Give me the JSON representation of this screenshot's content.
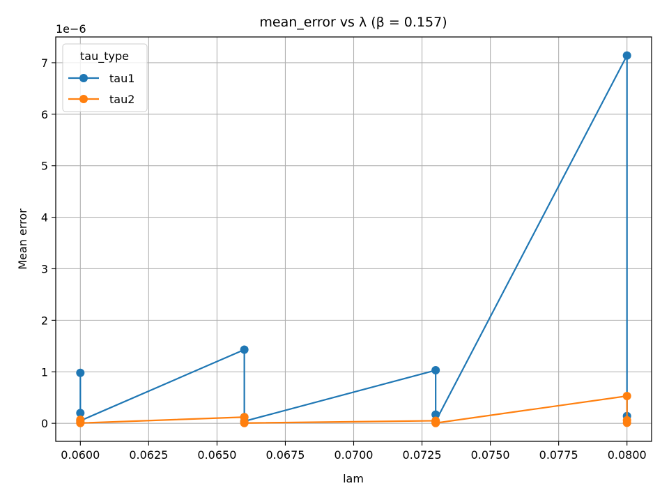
{
  "chart_data": {
    "type": "line",
    "title": "mean_error vs λ (β = 0.157)",
    "xlabel": "lam",
    "ylabel": "Mean error",
    "y_offset_label": "1e−6",
    "xlim": [
      0.0591,
      0.0809
    ],
    "ylim": [
      -0.35,
      7.5
    ],
    "y_scale_factor": 1e-06,
    "x_ticks": [
      0.06,
      0.0625,
      0.065,
      0.0675,
      0.07,
      0.0725,
      0.075,
      0.0775,
      0.08
    ],
    "x_tick_labels": [
      "0.0600",
      "0.0625",
      "0.0650",
      "0.0675",
      "0.0700",
      "0.0725",
      "0.0750",
      "0.0775",
      "0.0800"
    ],
    "y_ticks": [
      0,
      1,
      2,
      3,
      4,
      5,
      6,
      7
    ],
    "y_tick_labels": [
      "0",
      "1",
      "2",
      "3",
      "4",
      "5",
      "6",
      "7"
    ],
    "grid": true,
    "legend": {
      "title": "tau_type",
      "placement": "top-left"
    },
    "series": [
      {
        "name": "tau1",
        "color": "#1f77b4",
        "x": [
          0.06,
          0.06,
          0.06,
          0.066,
          0.066,
          0.066,
          0.073,
          0.073,
          0.073,
          0.08,
          0.08
        ],
        "y": [
          0.98,
          0.2,
          0.05,
          1.43,
          0.12,
          0.04,
          1.03,
          0.17,
          0.04,
          7.14,
          0.14
        ]
      },
      {
        "name": "tau2",
        "color": "#ff7f0e",
        "x": [
          0.06,
          0.06,
          0.06,
          0.066,
          0.066,
          0.066,
          0.073,
          0.073,
          0.073,
          0.08,
          0.08,
          0.08
        ],
        "y": [
          0.07,
          0.02,
          0.005,
          0.12,
          0.03,
          0.005,
          0.05,
          0.01,
          0.005,
          0.53,
          0.06,
          0.01
        ]
      }
    ]
  }
}
